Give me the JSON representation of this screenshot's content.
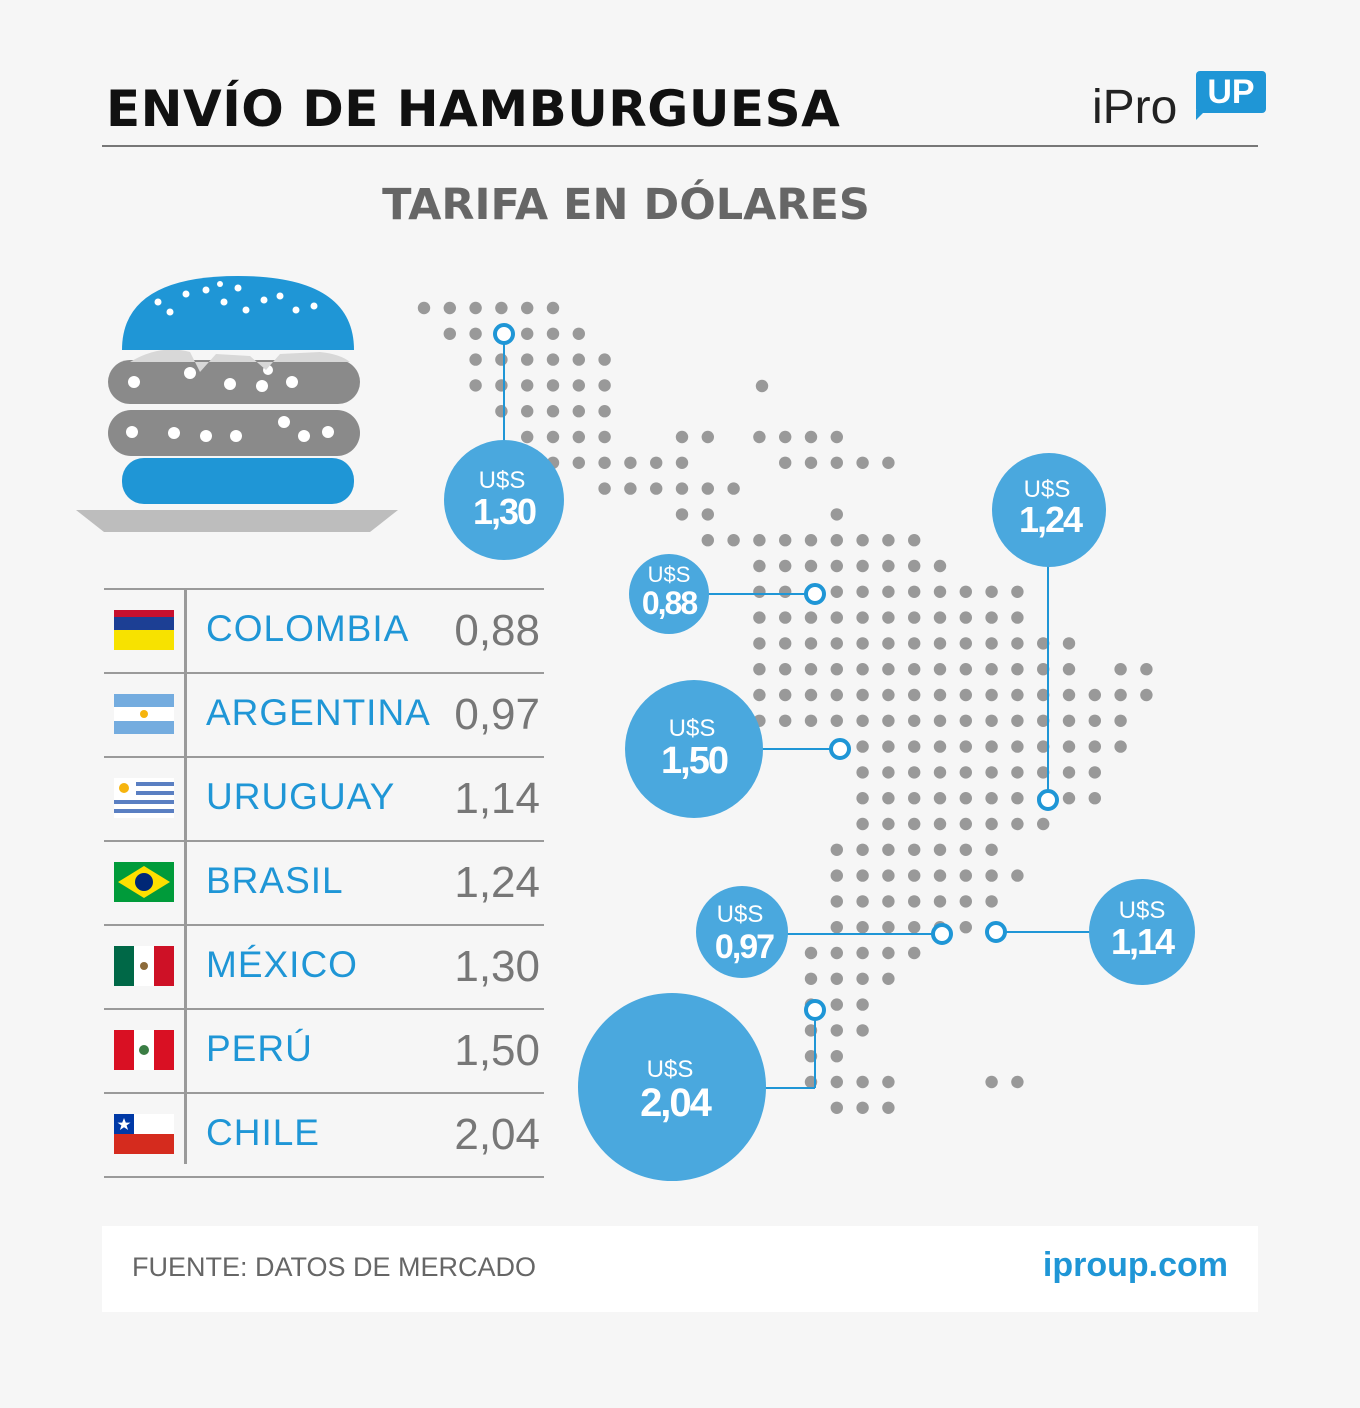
{
  "header": {
    "title": "ENVÍO DE HAMBURGUESA",
    "subtitle": "TARIFA EN DÓLARES"
  },
  "logo": {
    "text": "iPro",
    "badge": "UP"
  },
  "colors": {
    "accent": "#1f96d6",
    "bubble": "#4aa8de",
    "dot": "#999999",
    "rule": "#9a9a9a"
  },
  "table": [
    {
      "country": "COLOMBIA",
      "value": "0,88",
      "flag": "colombia-flag"
    },
    {
      "country": "ARGENTINA",
      "value": "0,97",
      "flag": "argentina-flag"
    },
    {
      "country": "URUGUAY",
      "value": "1,14",
      "flag": "uruguay-flag"
    },
    {
      "country": "BRASIL",
      "value": "1,24",
      "flag": "brazil-flag"
    },
    {
      "country": "MÉXICO",
      "value": "1,30",
      "flag": "mexico-flag"
    },
    {
      "country": "PERÚ",
      "value": "1,50",
      "flag": "peru-flag"
    },
    {
      "country": "CHILE",
      "value": "2,04",
      "flag": "chile-flag"
    }
  ],
  "bubbles": {
    "currency": "U$S",
    "mexico": "1,30",
    "brasil": "1,24",
    "colombia": "0,88",
    "peru": "1,50",
    "argentina": "0,97",
    "uruguay": "1,14",
    "chile": "2,04"
  },
  "footer": {
    "source": "FUENTE: DATOS DE MERCADO",
    "site": "iproup.com"
  }
}
